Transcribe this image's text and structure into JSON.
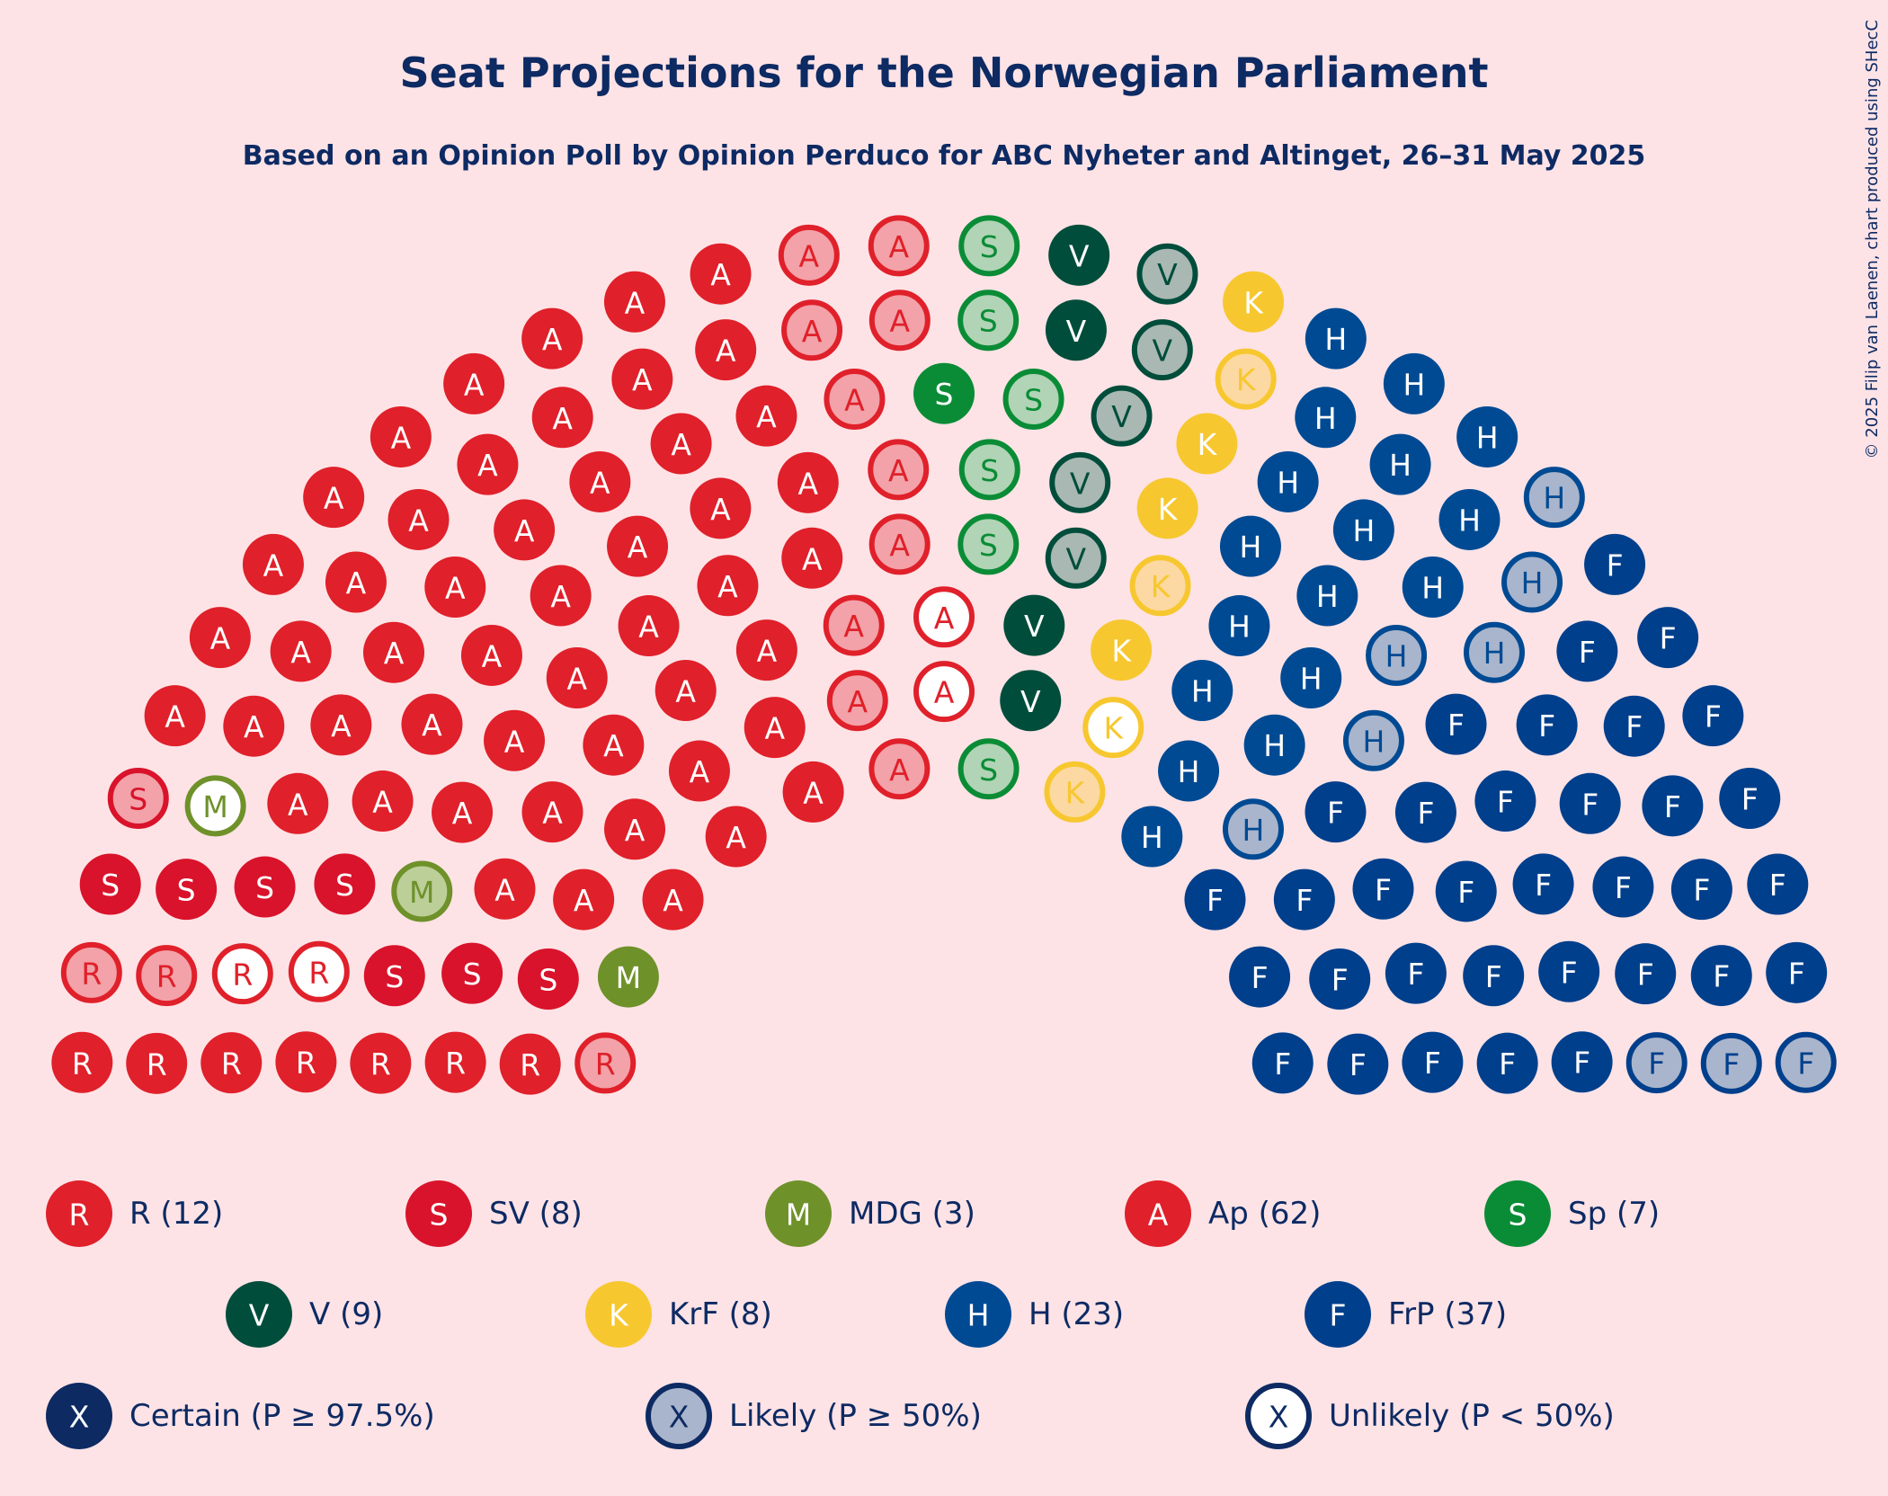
{
  "title": "Seat Projections for the Norwegian Parliament",
  "subtitle": "Based on an Opinion Poll by Opinion Perduco for ABC Nyheter and Altinget, 26–31 May 2025",
  "credit": "© 2025 Filip van Laenen, chart produced using SHecC",
  "chart_data": {
    "type": "parliament",
    "title": "Seat Projections for the Norwegian Parliament",
    "subtitle": "Based on an Opinion Poll by Opinion Perduco for ABC Nyheter and Altinget, 26–31 May 2025",
    "total_seats": 169,
    "parties": [
      {
        "key": "R",
        "letter": "R",
        "label": "R (12)",
        "seats": 12,
        "certain": 7,
        "likely": 3,
        "unlikely": 2,
        "color": "#e0202a",
        "light": "#f2a2a8"
      },
      {
        "key": "SV",
        "letter": "S",
        "label": "SV (8)",
        "seats": 8,
        "certain": 7,
        "likely": 1,
        "unlikely": 0,
        "color": "#d9132b",
        "light": "#f2a2a8"
      },
      {
        "key": "MDG",
        "letter": "M",
        "label": "MDG (3)",
        "seats": 3,
        "certain": 1,
        "likely": 1,
        "unlikely": 1,
        "color": "#6f912a",
        "light": "#bccf99"
      },
      {
        "key": "Ap",
        "letter": "A",
        "label": "Ap (62)",
        "seats": 62,
        "certain": 50,
        "likely": 10,
        "unlikely": 2,
        "color": "#e0202a",
        "light": "#f2a2a8"
      },
      {
        "key": "Sp",
        "letter": "S",
        "label": "Sp (7)",
        "seats": 7,
        "certain": 1,
        "likely": 6,
        "unlikely": 0,
        "color": "#0a8c36",
        "light": "#b0d4b5"
      },
      {
        "key": "V",
        "letter": "V",
        "label": "V (9)",
        "seats": 9,
        "certain": 4,
        "likely": 5,
        "unlikely": 0,
        "color": "#004d3b",
        "light": "#a9b8b2"
      },
      {
        "key": "KrF",
        "letter": "K",
        "label": "KrF (8)",
        "seats": 8,
        "certain": 4,
        "likely": 3,
        "unlikely": 1,
        "color": "#f7c72f",
        "light": "#fcd9a2"
      },
      {
        "key": "H",
        "letter": "H",
        "label": "H (23)",
        "seats": 23,
        "certain": 17,
        "likely": 6,
        "unlikely": 0,
        "color": "#004a93",
        "light": "#a9b5cc"
      },
      {
        "key": "FrP",
        "letter": "F",
        "label": "FrP (37)",
        "seats": 37,
        "certain": 34,
        "likely": 3,
        "unlikely": 0,
        "color": "#003f8c",
        "light": "#a9b5cc"
      }
    ],
    "probability_legend": [
      {
        "letter": "X",
        "label": "Certain (P ≥ 97.5%)",
        "style": "certain"
      },
      {
        "letter": "X",
        "label": "Likely (P ≥ 50%)",
        "style": "likely"
      },
      {
        "letter": "X",
        "label": "Unlikely (P < 50%)",
        "style": "unlikely"
      }
    ],
    "legend_color": "#0d2a63",
    "legend_light": "#a9b5cc"
  }
}
